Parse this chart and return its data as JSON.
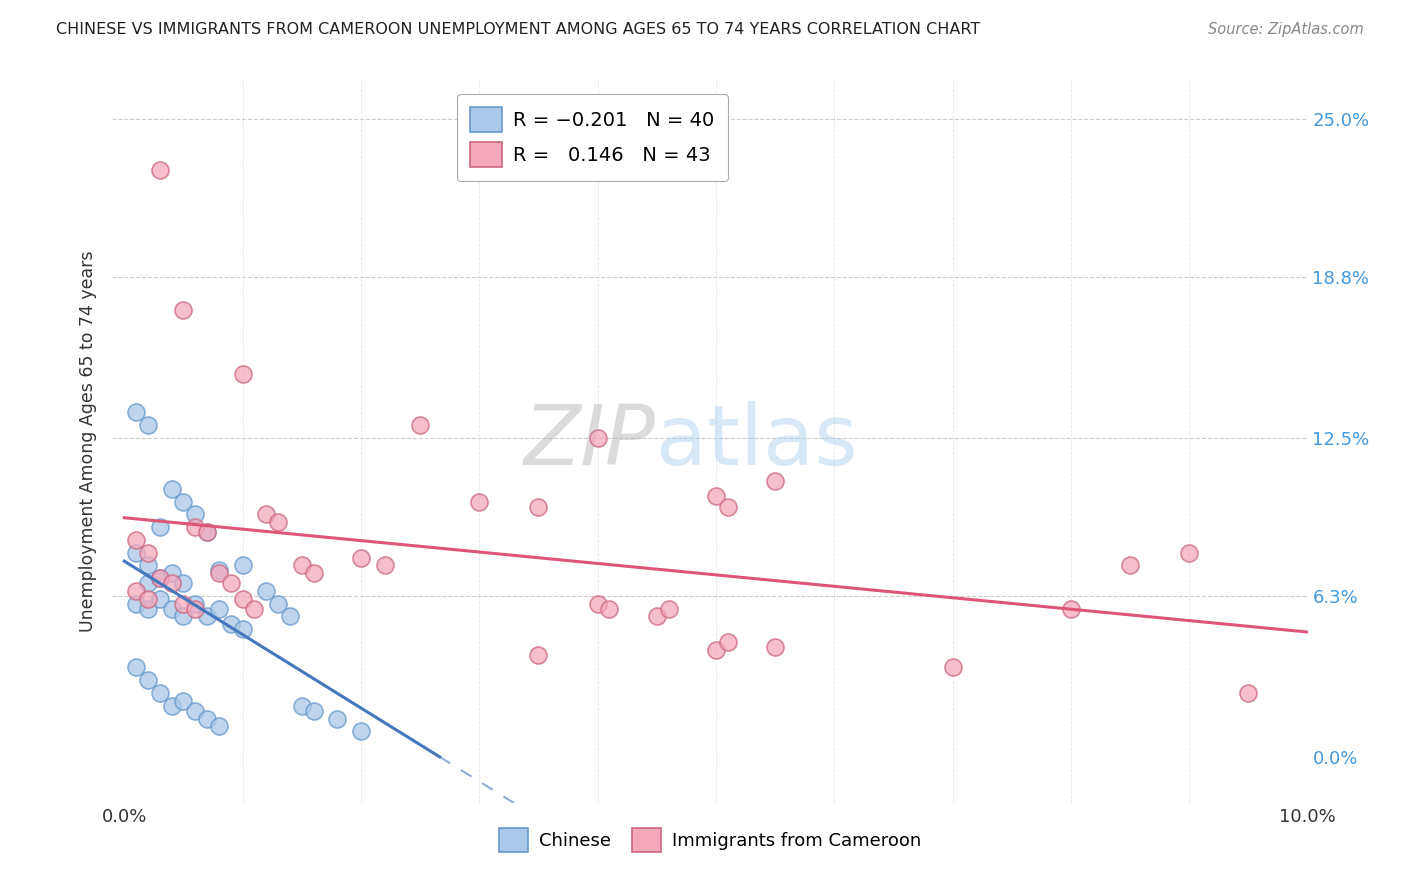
{
  "title": "CHINESE VS IMMIGRANTS FROM CAMEROON UNEMPLOYMENT AMONG AGES 65 TO 74 YEARS CORRELATION CHART",
  "source": "Source: ZipAtlas.com",
  "ylabel": "Unemployment Among Ages 65 to 74 years",
  "xlim": [
    0.0,
    0.1
  ],
  "ylim": [
    0.0,
    0.26
  ],
  "ytick_values": [
    0.0,
    0.063,
    0.125,
    0.188,
    0.25
  ],
  "ytick_labels_right": [
    "0.0%",
    "6.3%",
    "12.5%",
    "18.8%",
    "25.0%"
  ],
  "xtick_values": [
    0.0,
    0.01,
    0.02,
    0.03,
    0.04,
    0.05,
    0.06,
    0.07,
    0.08,
    0.09,
    0.1
  ],
  "xtick_labels": [
    "0.0%",
    "",
    "",
    "",
    "",
    "",
    "",
    "",
    "",
    "",
    "10.0%"
  ],
  "watermark_zip": "ZIP",
  "watermark_atlas": "atlas",
  "chinese_color": "#aac8e8",
  "chinese_edge_color": "#6699cc",
  "cameroon_color": "#f5a8bc",
  "cameroon_edge_color": "#cc6680",
  "chinese_line_color": "#4477bb",
  "cameroon_line_color": "#dd5577",
  "background_color": "#ffffff",
  "grid_color": "#cccccc",
  "right_axis_color": "#4499dd",
  "chinese_points": [
    [
      0.001,
      0.135
    ],
    [
      0.002,
      0.13
    ],
    [
      0.004,
      0.105
    ],
    [
      0.005,
      0.1
    ],
    [
      0.001,
      0.08
    ],
    [
      0.002,
      0.075
    ],
    [
      0.003,
      0.09
    ],
    [
      0.006,
      0.095
    ],
    [
      0.007,
      0.088
    ],
    [
      0.002,
      0.068
    ],
    [
      0.003,
      0.07
    ],
    [
      0.004,
      0.072
    ],
    [
      0.005,
      0.068
    ],
    [
      0.008,
      0.073
    ],
    [
      0.01,
      0.075
    ],
    [
      0.001,
      0.06
    ],
    [
      0.002,
      0.058
    ],
    [
      0.003,
      0.062
    ],
    [
      0.004,
      0.058
    ],
    [
      0.005,
      0.055
    ],
    [
      0.006,
      0.06
    ],
    [
      0.007,
      0.055
    ],
    [
      0.008,
      0.058
    ],
    [
      0.009,
      0.052
    ],
    [
      0.01,
      0.05
    ],
    [
      0.012,
      0.065
    ],
    [
      0.013,
      0.06
    ],
    [
      0.014,
      0.055
    ],
    [
      0.001,
      0.035
    ],
    [
      0.002,
      0.03
    ],
    [
      0.003,
      0.025
    ],
    [
      0.004,
      0.02
    ],
    [
      0.005,
      0.022
    ],
    [
      0.006,
      0.018
    ],
    [
      0.007,
      0.015
    ],
    [
      0.008,
      0.012
    ],
    [
      0.015,
      0.02
    ],
    [
      0.016,
      0.018
    ],
    [
      0.018,
      0.015
    ],
    [
      0.02,
      0.01
    ]
  ],
  "cameroon_points": [
    [
      0.003,
      0.23
    ],
    [
      0.005,
      0.175
    ],
    [
      0.01,
      0.15
    ],
    [
      0.025,
      0.13
    ],
    [
      0.04,
      0.125
    ],
    [
      0.055,
      0.108
    ],
    [
      0.001,
      0.085
    ],
    [
      0.002,
      0.08
    ],
    [
      0.006,
      0.09
    ],
    [
      0.007,
      0.088
    ],
    [
      0.012,
      0.095
    ],
    [
      0.013,
      0.092
    ],
    [
      0.03,
      0.1
    ],
    [
      0.035,
      0.098
    ],
    [
      0.05,
      0.102
    ],
    [
      0.051,
      0.098
    ],
    [
      0.003,
      0.07
    ],
    [
      0.004,
      0.068
    ],
    [
      0.008,
      0.072
    ],
    [
      0.009,
      0.068
    ],
    [
      0.015,
      0.075
    ],
    [
      0.016,
      0.072
    ],
    [
      0.02,
      0.078
    ],
    [
      0.022,
      0.075
    ],
    [
      0.001,
      0.065
    ],
    [
      0.002,
      0.062
    ],
    [
      0.005,
      0.06
    ],
    [
      0.006,
      0.058
    ],
    [
      0.01,
      0.062
    ],
    [
      0.011,
      0.058
    ],
    [
      0.04,
      0.06
    ],
    [
      0.041,
      0.058
    ],
    [
      0.045,
      0.055
    ],
    [
      0.046,
      0.058
    ],
    [
      0.08,
      0.058
    ],
    [
      0.085,
      0.075
    ],
    [
      0.09,
      0.08
    ],
    [
      0.035,
      0.04
    ],
    [
      0.05,
      0.042
    ],
    [
      0.051,
      0.045
    ],
    [
      0.055,
      0.043
    ],
    [
      0.07,
      0.035
    ],
    [
      0.095,
      0.025
    ]
  ],
  "legend1_label_r": "R = ",
  "legend1_r_val": "-0.201",
  "legend1_n": "N = 40",
  "legend2_label_r": "R =  ",
  "legend2_r_val": "0.146",
  "legend2_n": "N = 43"
}
